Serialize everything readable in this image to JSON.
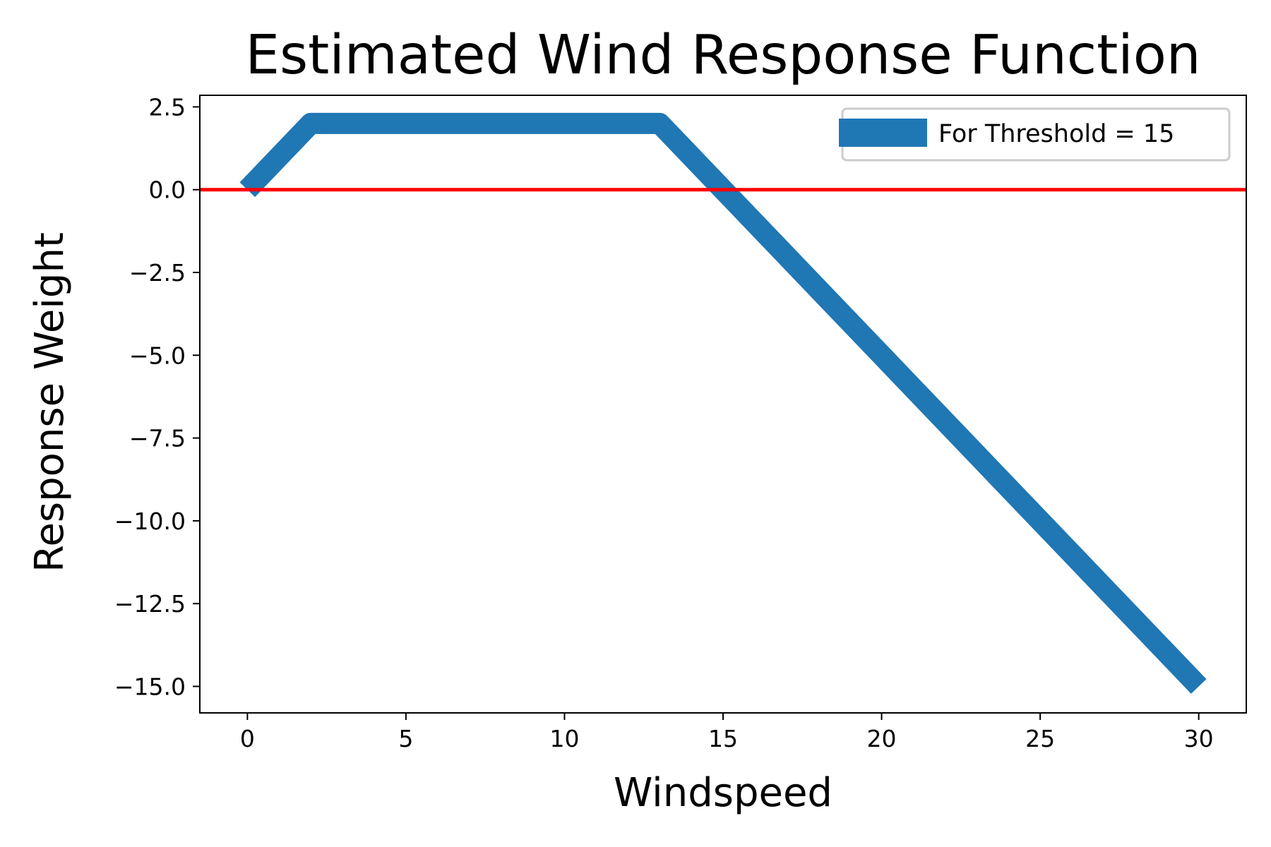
{
  "chart_data": {
    "type": "line",
    "title": "Estimated Wind Response Function",
    "xlabel": "Windspeed",
    "ylabel": "Response Weight",
    "xlim": [
      -1.5,
      31.5
    ],
    "ylim": [
      -15.8,
      2.85
    ],
    "xticks": [
      0,
      5,
      10,
      15,
      20,
      25,
      30
    ],
    "xtick_labels": [
      "0",
      "5",
      "10",
      "15",
      "20",
      "25",
      "30"
    ],
    "yticks": [
      2.5,
      0.0,
      -2.5,
      -5.0,
      -7.5,
      -10.0,
      -12.5,
      -15.0
    ],
    "ytick_labels": [
      "2.5",
      "0.0",
      "−2.5",
      "−5.0",
      "−7.5",
      "−10.0",
      "−12.5",
      "−15.0"
    ],
    "grid": false,
    "legend_position": "upper right",
    "series": [
      {
        "name": "For Threshold = 15",
        "color": "#1f77b4",
        "x": [
          0,
          2,
          3,
          4,
          5,
          6,
          7,
          8,
          9,
          10,
          11,
          12,
          13,
          14,
          15,
          16,
          17,
          18,
          19,
          20,
          21,
          22,
          23,
          24,
          25,
          26,
          27,
          28,
          29,
          30
        ],
        "y": [
          0,
          2,
          2,
          2,
          2,
          2,
          2,
          2,
          2,
          2,
          2,
          2,
          2,
          1,
          0,
          -1,
          -2,
          -3,
          -4,
          -5,
          -6,
          -7,
          -8,
          -9,
          -10,
          -11,
          -12,
          -13,
          -14,
          -15
        ]
      }
    ],
    "reference_line": {
      "type": "hline",
      "y": 0,
      "color": "#ff0000"
    }
  }
}
